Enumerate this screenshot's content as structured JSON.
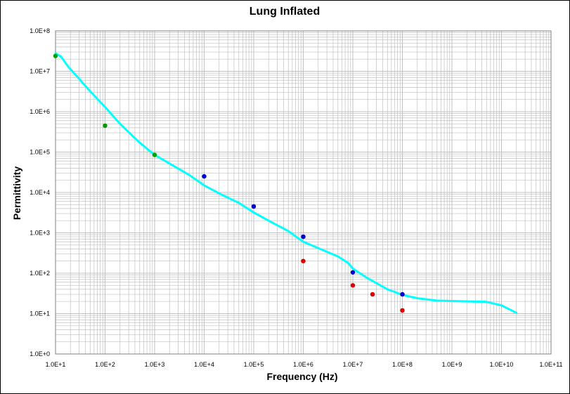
{
  "chart_data": {
    "type": "scatter",
    "title": "Lung Inflated",
    "xlabel": "Frequency (Hz)",
    "ylabel": "Permittivity",
    "xscale": "log",
    "yscale": "log",
    "xlim": [
      10,
      100000000000
    ],
    "ylim": [
      1,
      100000000
    ],
    "grid": true,
    "x_tick_labels": [
      "1.0E+1",
      "1.0E+2",
      "1.0E+3",
      "1.0E+4",
      "1.0E+5",
      "1.0E+6",
      "1.0E+7",
      "1.0E+8",
      "1.0E+9",
      "1.0E+10",
      "1.0E+11"
    ],
    "y_tick_labels": [
      "1.0E+0",
      "1.0E+1",
      "1.0E+2",
      "1.0E+3",
      "1.0E+4",
      "1.0E+5",
      "1.0E+6",
      "1.0E+7",
      "1.0E+8"
    ],
    "colors": {
      "line": "#00ffff",
      "green": "#00a000",
      "blue": "#0000cc",
      "red": "#dd0000",
      "grid": "#c0c0c0"
    },
    "series": [
      {
        "type": "line",
        "color": "#00ffff",
        "points": [
          [
            10,
            28000000
          ],
          [
            13,
            23000000
          ],
          [
            18,
            13000000
          ],
          [
            30,
            6500000
          ],
          [
            50,
            3200000
          ],
          [
            100,
            1300000
          ],
          [
            200,
            500000
          ],
          [
            500,
            170000
          ],
          [
            1000,
            85000
          ],
          [
            2000,
            52000
          ],
          [
            5000,
            27000
          ],
          [
            10000,
            15000
          ],
          [
            20000,
            9500
          ],
          [
            50000,
            5500
          ],
          [
            100000,
            3200
          ],
          [
            200000,
            2000
          ],
          [
            500000,
            1100
          ],
          [
            1000000,
            600
          ],
          [
            2000000,
            420
          ],
          [
            5000000,
            260
          ],
          [
            8000000,
            180
          ],
          [
            10000000,
            130
          ],
          [
            20000000,
            75
          ],
          [
            50000000,
            40
          ],
          [
            100000000,
            29
          ],
          [
            200000000,
            24
          ],
          [
            500000000,
            21
          ],
          [
            1000000000,
            20.5
          ],
          [
            5000000000,
            19.5
          ],
          [
            10000000000,
            16
          ],
          [
            20000000000,
            10.5
          ]
        ]
      },
      {
        "type": "scatter",
        "color": "#00a000",
        "points": [
          [
            10,
            24000000
          ],
          [
            100,
            450000
          ],
          [
            1000,
            85000
          ]
        ]
      },
      {
        "type": "scatter",
        "color": "#0000cc",
        "points": [
          [
            10000,
            25000
          ],
          [
            100000,
            4500
          ],
          [
            1000000,
            800
          ],
          [
            10000000,
            105
          ],
          [
            100000000,
            30
          ]
        ]
      },
      {
        "type": "scatter",
        "color": "#dd0000",
        "points": [
          [
            1000000,
            200
          ],
          [
            10000000,
            50
          ],
          [
            25000000,
            30
          ],
          [
            100000000,
            12
          ]
        ]
      }
    ]
  }
}
